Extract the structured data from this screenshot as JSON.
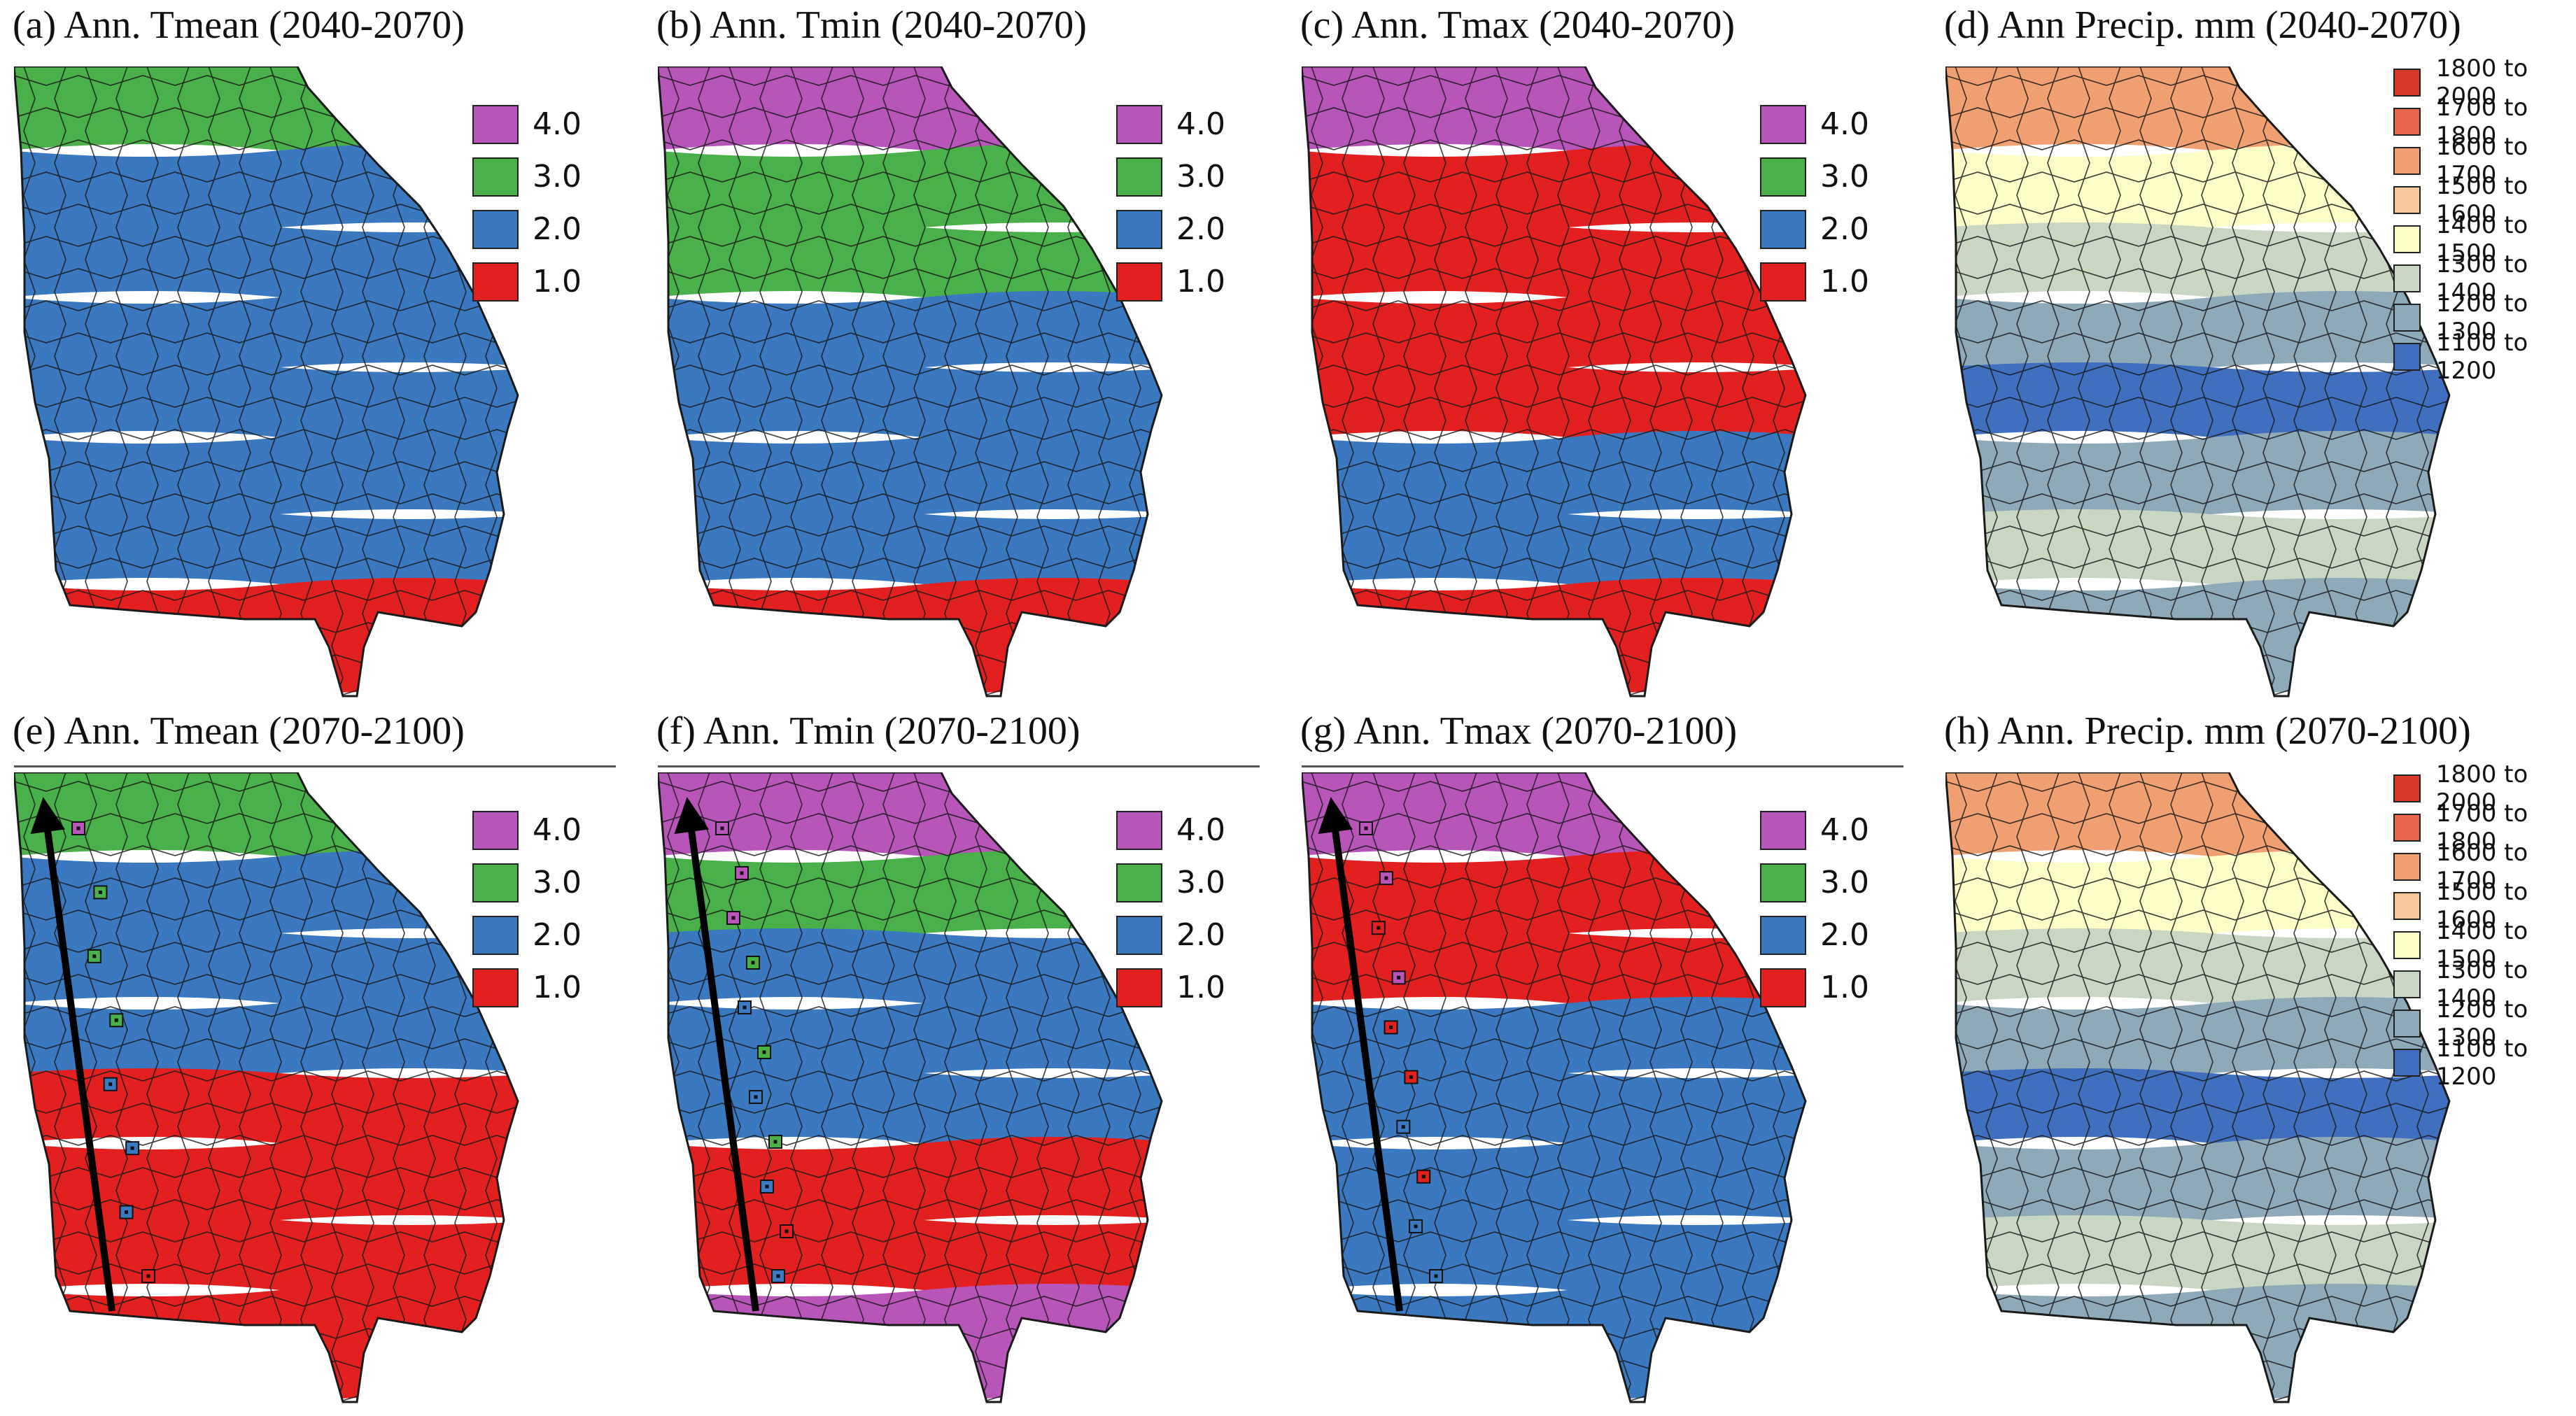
{
  "colors": {
    "t4": "#b855b8",
    "t3": "#4ab04a",
    "t2": "#3a78bf",
    "t1": "#e22020",
    "p1800": "#d83a2a",
    "p1700": "#e8674a",
    "p1600": "#f0a070",
    "p1500": "#f7c89a",
    "p1400": "#fdfdc8",
    "p1300": "#c8d6c2",
    "p1200": "#8ea9b8",
    "p1100": "#3f6fbe",
    "border": "#1a1a1a",
    "arrow": "#000000"
  },
  "temp_legend": [
    {
      "label": "4.0",
      "color_key": "t4"
    },
    {
      "label": "3.0",
      "color_key": "t3"
    },
    {
      "label": "2.0",
      "color_key": "t2"
    },
    {
      "label": "1.0",
      "color_key": "t1"
    }
  ],
  "precip_legend": [
    {
      "label": "1800 to 2000",
      "color_key": "p1800"
    },
    {
      "label": "1700 to 1800",
      "color_key": "p1700"
    },
    {
      "label": "1600 to 1700",
      "color_key": "p1600"
    },
    {
      "label": "1500 to 1600",
      "color_key": "p1500"
    },
    {
      "label": "1400 to 1500",
      "color_key": "p1400"
    },
    {
      "label": "1300 to 1400",
      "color_key": "p1300"
    },
    {
      "label": "1200 to 1300",
      "color_key": "p1200"
    },
    {
      "label": "1100 to 1200",
      "color_key": "p1100"
    }
  ],
  "panels": [
    {
      "id": "a",
      "title": "(a) Ann. Tmean (2040-2070)",
      "kind": "temp",
      "zones": [
        "t3",
        "t2",
        "t2",
        "t2",
        "t2",
        "t2",
        "t2",
        "t1"
      ],
      "arrow": false,
      "markers": []
    },
    {
      "id": "b",
      "title": "(b) Ann. Tmin (2040-2070)",
      "kind": "temp",
      "zones": [
        "t4",
        "t3",
        "t3",
        "t2",
        "t2",
        "t2",
        "t2",
        "t1"
      ],
      "arrow": false,
      "markers": []
    },
    {
      "id": "c",
      "title": "(c) Ann. Tmax (2040-2070)",
      "kind": "temp",
      "zones": [
        "t4",
        "t1",
        "t1",
        "t1",
        "t1",
        "t2",
        "t2",
        "t1"
      ],
      "arrow": false,
      "markers": []
    },
    {
      "id": "d",
      "title": "(d) Ann Precip. mm (2040-2070)",
      "kind": "precip",
      "zones": [
        "p1600",
        "p1400",
        "p1300",
        "p1200",
        "p1100",
        "p1200",
        "p1300",
        "p1200"
      ],
      "arrow": false,
      "markers": []
    },
    {
      "id": "e",
      "title": "(e) Ann. Tmean (2070-2100)",
      "kind": "temp",
      "zones": [
        "t3",
        "t2",
        "t2",
        "t2",
        "t1",
        "t1",
        "t1",
        "t1"
      ],
      "arrow": true,
      "markers": [
        "t4",
        "t3",
        "t3",
        "t3",
        "t2",
        "t2",
        "t2",
        "t1"
      ]
    },
    {
      "id": "f",
      "title": "(f) Ann. Tmin (2070-2100)",
      "kind": "temp",
      "zones": [
        "t4",
        "t3",
        "t2",
        "t2",
        "t2",
        "t1",
        "t1",
        "t4"
      ],
      "arrow": true,
      "markers": [
        "t4",
        "t4",
        "t4",
        "t3",
        "t2",
        "t3",
        "t2",
        "t3",
        "t2",
        "t1",
        "t2"
      ]
    },
    {
      "id": "g",
      "title": "(g) Ann. Tmax (2070-2100)",
      "kind": "temp",
      "zones": [
        "t4",
        "t1",
        "t1",
        "t2",
        "t2",
        "t2",
        "t2",
        "t2"
      ],
      "arrow": true,
      "markers": [
        "t4",
        "t4",
        "t1",
        "t4",
        "t1",
        "t1",
        "t2",
        "t1",
        "t2",
        "t2"
      ]
    },
    {
      "id": "h",
      "title": "(h) Ann. Precip. mm (2070-2100)",
      "kind": "precip",
      "zones": [
        "p1600",
        "p1400",
        "p1300",
        "p1200",
        "p1100",
        "p1200",
        "p1300",
        "p1200"
      ],
      "arrow": false,
      "markers": []
    }
  ]
}
